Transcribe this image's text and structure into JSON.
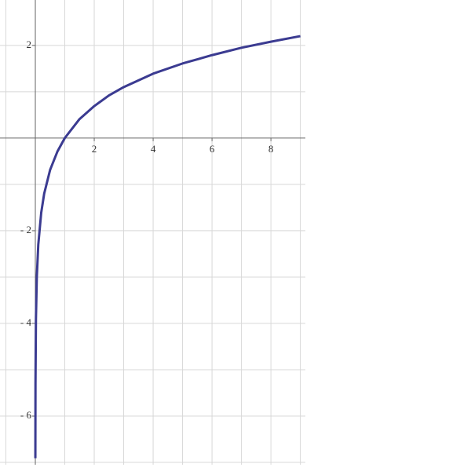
{
  "chart_data": {
    "type": "line",
    "x": [
      0.001,
      0.005,
      0.02,
      0.05,
      0.1,
      0.2,
      0.3,
      0.5,
      0.75,
      1,
      1.5,
      2,
      2.5,
      3,
      4,
      5,
      6,
      7,
      8,
      9
    ],
    "series": [
      {
        "color": "#3b3b91",
        "values": [
          -6.91,
          -5.3,
          -3.91,
          -3.0,
          -2.3,
          -1.61,
          -1.2,
          -0.69,
          -0.29,
          0,
          0.41,
          0.69,
          0.92,
          1.1,
          1.39,
          1.61,
          1.79,
          1.95,
          2.08,
          2.2
        ]
      }
    ],
    "xlim": [
      -1.2,
      9.17
    ],
    "ylim": [
      -7.05,
      2.98
    ],
    "xticks": [
      2,
      4,
      6,
      8
    ],
    "yticks": [
      {
        "value": 2,
        "label": "2"
      },
      {
        "value": -2,
        "label": "- 2"
      },
      {
        "value": -4,
        "label": "- 4"
      },
      {
        "value": -6,
        "label": "- 6"
      }
    ],
    "xminorticks": [
      -1,
      1,
      3,
      5,
      7,
      9
    ],
    "yminorticks": [
      1,
      -1,
      -3,
      -5,
      -7
    ],
    "grid": true
  }
}
